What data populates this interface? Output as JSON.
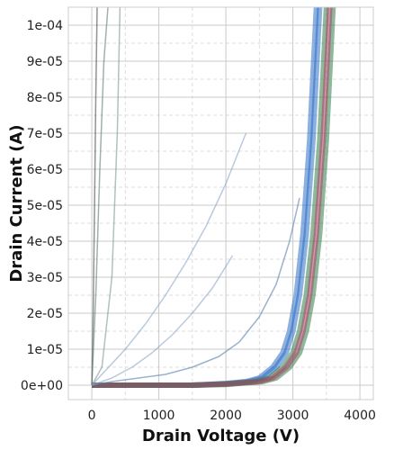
{
  "chart_data": {
    "type": "line",
    "title": "",
    "xlabel": "Drain Voltage (V)",
    "ylabel": "Drain Current (A)",
    "xlim": [
      -350,
      4200
    ],
    "ylim": [
      -4e-06,
      0.000105
    ],
    "x_ticks": [
      0,
      1000,
      2000,
      3000,
      4000
    ],
    "x_tick_labels": [
      "0",
      "1000",
      "2000",
      "3000",
      "4000"
    ],
    "y_ticks": [
      0,
      1e-05,
      2e-05,
      3e-05,
      4e-05,
      5e-05,
      6e-05,
      7e-05,
      8e-05,
      9e-05,
      0.0001
    ],
    "y_tick_labels": [
      "0e+00",
      "1e-05",
      "2e-05",
      "3e-05",
      "4e-05",
      "5e-05",
      "6e-05",
      "7e-05",
      "8e-05",
      "9e-05",
      "1e-04"
    ],
    "grid": true,
    "legend": "none",
    "series": [
      {
        "color": "#2e6fc4",
        "x": [
          0,
          500,
          1000,
          1500,
          2000,
          2300,
          2500,
          2700,
          2850,
          2950,
          3050,
          3150,
          3250,
          3350
        ],
        "y": [
          0,
          0,
          0,
          0,
          5e-07,
          1e-06,
          2e-06,
          5e-06,
          9e-06,
          1.5e-05,
          2.5e-05,
          4.2e-05,
          6.8e-05,
          0.000105
        ]
      },
      {
        "color": "#2e6fc4",
        "x": [
          0,
          500,
          1000,
          1500,
          2000,
          2350,
          2550,
          2750,
          2900,
          3000,
          3100,
          3200,
          3300,
          3400
        ],
        "y": [
          0,
          0,
          0,
          0,
          4e-07,
          1e-06,
          2e-06,
          5e-06,
          9e-06,
          1.5e-05,
          2.5e-05,
          4.2e-05,
          6.8e-05,
          0.000105
        ]
      },
      {
        "color": "#2f7d45",
        "x": [
          0,
          500,
          1000,
          1500,
          2000,
          2450,
          2650,
          2850,
          3000,
          3100,
          3200,
          3300,
          3400,
          3500
        ],
        "y": [
          0,
          0,
          0,
          0,
          3e-07,
          1e-06,
          2e-06,
          5e-06,
          9e-06,
          1.5e-05,
          2.5e-05,
          4.2e-05,
          6.8e-05,
          0.000105
        ]
      },
      {
        "color": "#2f7d45",
        "x": [
          0,
          500,
          1000,
          1500,
          2000,
          2550,
          2750,
          2950,
          3100,
          3200,
          3300,
          3400,
          3500,
          3600
        ],
        "y": [
          0,
          0,
          0,
          0,
          2e-07,
          1e-06,
          2e-06,
          5e-06,
          9e-06,
          1.5e-05,
          2.5e-05,
          4.2e-05,
          6.8e-05,
          0.000105
        ]
      },
      {
        "color": "#b0406a",
        "x": [
          0,
          500,
          1000,
          1500,
          2000,
          2500,
          2700,
          2900,
          3050,
          3150,
          3250,
          3350,
          3450,
          3550
        ],
        "y": [
          0,
          0,
          0,
          0,
          3e-07,
          1e-06,
          2e-06,
          5e-06,
          9e-06,
          1.5e-05,
          2.5e-05,
          4.2e-05,
          6.8e-05,
          0.000105
        ]
      },
      {
        "color": "#5a7fae",
        "x": [
          0,
          300,
          700,
          1100,
          1500,
          1900,
          2200,
          2500,
          2750,
          2950,
          3100
        ],
        "y": [
          0,
          1e-06,
          2e-06,
          3e-06,
          5e-06,
          8e-06,
          1.2e-05,
          1.9e-05,
          2.8e-05,
          4e-05,
          5.2e-05
        ]
      },
      {
        "color": "#8aa7c9",
        "x": [
          0,
          200,
          500,
          800,
          1100,
          1400,
          1700,
          2000,
          2300
        ],
        "y": [
          0,
          4e-06,
          1e-05,
          1.7e-05,
          2.5e-05,
          3.4e-05,
          4.4e-05,
          5.6e-05,
          7e-05
        ]
      },
      {
        "color": "#8aa7c9",
        "x": [
          0,
          300,
          600,
          900,
          1200,
          1500,
          1800,
          2100
        ],
        "y": [
          0,
          2e-06,
          5e-06,
          9e-06,
          1.4e-05,
          2e-05,
          2.7e-05,
          3.6e-05
        ]
      },
      {
        "color": "#4a4a4a",
        "x": [
          0,
          20,
          40,
          60,
          80
        ],
        "y": [
          0,
          2e-05,
          5e-05,
          8e-05,
          0.000105
        ]
      },
      {
        "color": "#5f7f72",
        "x": [
          0,
          60,
          120,
          180,
          240
        ],
        "y": [
          0,
          2.5e-05,
          6e-05,
          9e-05,
          0.000105
        ]
      },
      {
        "color": "#7a9a8d",
        "x": [
          0,
          150,
          300,
          380,
          420
        ],
        "y": [
          0,
          5e-06,
          3e-05,
          7e-05,
          0.000105
        ]
      }
    ]
  }
}
